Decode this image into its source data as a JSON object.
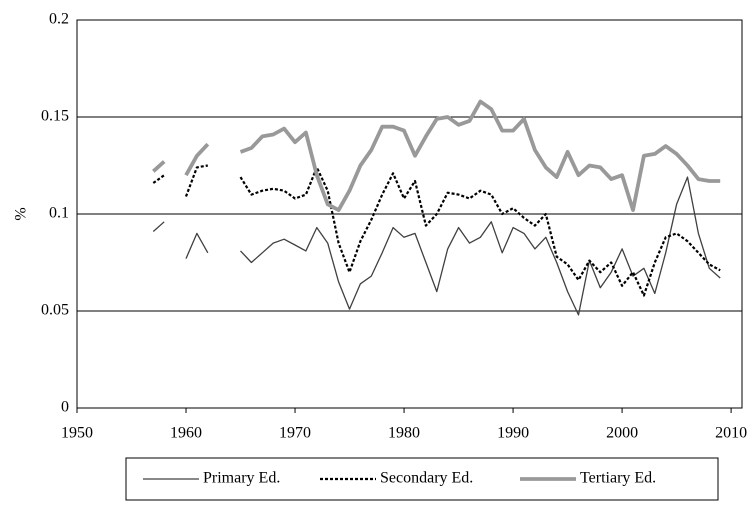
{
  "chart_data": {
    "type": "line",
    "y_label": "%",
    "x": [
      1957,
      1958,
      1959,
      1960,
      1961,
      1962,
      1963,
      1964,
      1965,
      1966,
      1967,
      1968,
      1969,
      1970,
      1971,
      1972,
      1973,
      1974,
      1975,
      1976,
      1977,
      1978,
      1979,
      1980,
      1981,
      1982,
      1983,
      1984,
      1985,
      1986,
      1987,
      1988,
      1989,
      1990,
      1991,
      1992,
      1993,
      1994,
      1995,
      1996,
      1997,
      1998,
      1999,
      2000,
      2001,
      2002,
      2003,
      2004,
      2005,
      2006,
      2007,
      2008,
      2009
    ],
    "series": [
      {
        "name": "Primary Ed.",
        "color": "#404040",
        "values": [
          0.091,
          0.096,
          null,
          0.077,
          0.09,
          0.08,
          null,
          null,
          0.081,
          0.075,
          0.08,
          0.085,
          0.087,
          0.084,
          0.081,
          0.093,
          0.085,
          0.065,
          0.051,
          0.064,
          0.068,
          0.08,
          0.093,
          0.088,
          0.09,
          0.075,
          0.06,
          0.082,
          0.093,
          0.085,
          0.088,
          0.096,
          0.08,
          0.093,
          0.09,
          0.082,
          0.088,
          0.075,
          0.06,
          0.048,
          0.076,
          0.062,
          0.07,
          0.082,
          0.068,
          0.072,
          0.059,
          0.08,
          0.105,
          0.119,
          0.09,
          0.072,
          0.067
        ]
      },
      {
        "name": "Secondary Ed.",
        "color": "#000000",
        "values": [
          0.116,
          0.12,
          null,
          0.109,
          0.124,
          0.125,
          null,
          null,
          0.119,
          0.11,
          0.112,
          0.113,
          0.112,
          0.108,
          0.11,
          0.124,
          0.112,
          0.085,
          0.07,
          0.086,
          0.097,
          0.11,
          0.121,
          0.108,
          0.117,
          0.094,
          0.1,
          0.111,
          0.11,
          0.108,
          0.112,
          0.11,
          0.1,
          0.103,
          0.098,
          0.094,
          0.1,
          0.078,
          0.074,
          0.066,
          0.076,
          0.07,
          0.075,
          0.063,
          0.07,
          0.058,
          0.075,
          0.088,
          0.09,
          0.086,
          0.08,
          0.074,
          0.071
        ]
      },
      {
        "name": "Tertiary Ed.",
        "color": "#999999",
        "values": [
          0.122,
          0.127,
          null,
          0.12,
          0.13,
          0.136,
          null,
          null,
          0.132,
          0.134,
          0.14,
          0.141,
          0.144,
          0.137,
          0.142,
          0.12,
          0.105,
          0.102,
          0.112,
          0.125,
          0.133,
          0.145,
          0.145,
          0.143,
          0.13,
          0.14,
          0.149,
          0.15,
          0.146,
          0.148,
          0.158,
          0.154,
          0.143,
          0.143,
          0.149,
          0.133,
          0.124,
          0.119,
          0.132,
          0.12,
          0.125,
          0.124,
          0.118,
          0.12,
          0.102,
          0.13,
          0.131,
          0.135,
          0.131,
          0.125,
          0.118,
          0.117,
          0.117
        ]
      }
    ],
    "xlim": [
      1950,
      2011
    ],
    "xticks": [
      1950,
      1960,
      1970,
      1980,
      1990,
      2000,
      2010
    ],
    "ylim": [
      0,
      0.2
    ],
    "yticks": [
      0,
      0.05,
      0.1,
      0.15,
      0.2
    ],
    "grid": true,
    "legend": "bottom"
  }
}
